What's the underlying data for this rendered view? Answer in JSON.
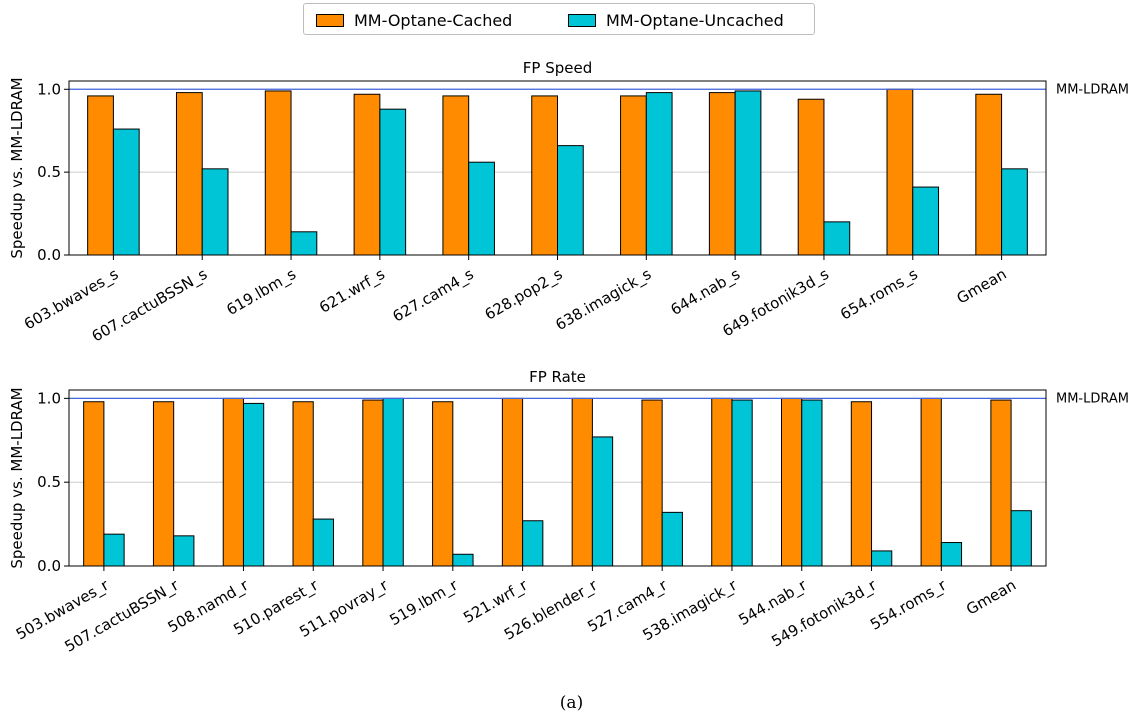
{
  "legend": {
    "series0": "MM-Optane-Cached",
    "series1": "MM-Optane-Uncached"
  },
  "caption": "(a)",
  "colors": {
    "cached": "#ff8c00",
    "uncached": "#00c5d6",
    "reference_line": "#4466dd",
    "grid": "#cccccc"
  },
  "chart_data": [
    {
      "type": "bar",
      "title": "FP Speed",
      "ylabel": "Speedup vs. MM-LDRAM",
      "xlabel": "",
      "ylim": [
        0,
        1.05
      ],
      "yticks": [
        0.0,
        0.5,
        1.0
      ],
      "yticklabels": [
        "0.0",
        "0.5",
        "1.0"
      ],
      "grid": "horizontal",
      "reference_line": {
        "value": 1.0,
        "label": "MM-LDRAM"
      },
      "categories": [
        "603.bwaves_s",
        "607.cactuBSSN_s",
        "619.lbm_s",
        "621.wrf_s",
        "627.cam4_s",
        "628.pop2_s",
        "638.imagick_s",
        "644.nab_s",
        "649.fotonik3d_s",
        "654.roms_s",
        "Gmean"
      ],
      "series": [
        {
          "name": "MM-Optane-Cached",
          "values": [
            0.96,
            0.98,
            0.99,
            0.97,
            0.96,
            0.96,
            0.96,
            0.98,
            0.94,
            1.0,
            0.97
          ]
        },
        {
          "name": "MM-Optane-Uncached",
          "values": [
            0.76,
            0.52,
            0.14,
            0.88,
            0.56,
            0.66,
            0.98,
            0.99,
            0.2,
            0.41,
            0.52
          ]
        }
      ]
    },
    {
      "type": "bar",
      "title": "FP Rate",
      "ylabel": "Speedup vs. MM-LDRAM",
      "xlabel": "",
      "ylim": [
        0,
        1.05
      ],
      "yticks": [
        0.0,
        0.5,
        1.0
      ],
      "yticklabels": [
        "0.0",
        "0.5",
        "1.0"
      ],
      "grid": "horizontal",
      "reference_line": {
        "value": 1.0,
        "label": "MM-LDRAM"
      },
      "categories": [
        "503.bwaves_r",
        "507.cactuBSSN_r",
        "508.namd_r",
        "510.parest_r",
        "511.povray_r",
        "519.lbm_r",
        "521.wrf_r",
        "526.blender_r",
        "527.cam4_r",
        "538.imagick_r",
        "544.nab_r",
        "549.fotonik3d_r",
        "554.roms_r",
        "Gmean"
      ],
      "series": [
        {
          "name": "MM-Optane-Cached",
          "values": [
            0.98,
            0.98,
            1.0,
            0.98,
            0.99,
            0.98,
            1.0,
            1.0,
            0.99,
            1.0,
            1.0,
            0.98,
            1.0,
            0.99
          ]
        },
        {
          "name": "MM-Optane-Uncached",
          "values": [
            0.19,
            0.18,
            0.97,
            0.28,
            1.0,
            0.07,
            0.27,
            0.77,
            0.32,
            0.99,
            0.99,
            0.09,
            0.14,
            0.33
          ]
        }
      ]
    }
  ]
}
